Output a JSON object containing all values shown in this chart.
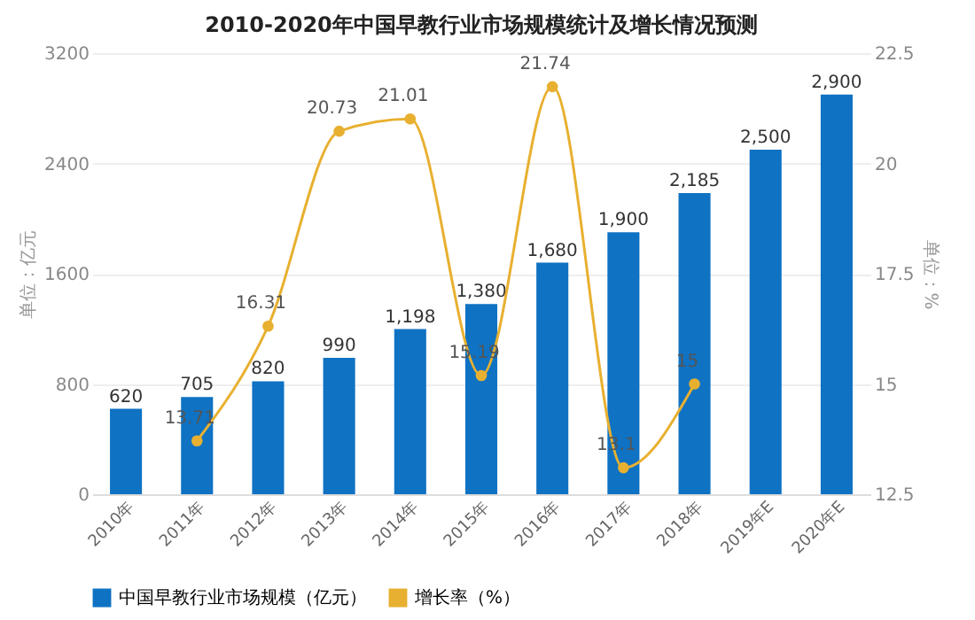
{
  "chart_data": {
    "type": "bar",
    "title": "2010-2020年中国早教行业市场规模统计及增长情况预测",
    "categories": [
      "2010年",
      "2011年",
      "2012年",
      "2013年",
      "2014年",
      "2015年",
      "2016年",
      "2017年",
      "2018年",
      "2019年E",
      "2020年E"
    ],
    "ylabel": "单位：亿元",
    "y2label": "单位：%",
    "series": [
      {
        "name": "中国早教行业市场规模（亿元）",
        "color": "#0f72c3",
        "values": [
          620,
          705,
          820,
          990,
          1198,
          1380,
          1680,
          1900,
          2185,
          2500,
          2900
        ],
        "value_labels": [
          "620",
          "705",
          "820",
          "990",
          "1,198",
          "1,380",
          "1,680",
          "1,900",
          "2,185",
          "2,500",
          "2,900"
        ]
      },
      {
        "name": "增长率（%）",
        "type": "line",
        "axis": "y2",
        "color": "#e8b030",
        "marker": "circle",
        "values": [
          null,
          13.71,
          16.31,
          20.73,
          21.01,
          15.19,
          21.74,
          13.1,
          15,
          null,
          null
        ],
        "value_labels": [
          null,
          "13.71",
          "16.31",
          "20.73",
          "21.01",
          "15.19",
          "21.74",
          "13.1",
          "15",
          null,
          null
        ]
      }
    ],
    "ylim": [
      0,
      3200
    ],
    "yticks": [
      0,
      800,
      1600,
      2400,
      3200
    ],
    "y2lim": [
      12.5,
      22.5
    ],
    "y2ticks": [
      12.5,
      15,
      17.5,
      20,
      22.5
    ],
    "grid": "y",
    "legend": "bottom"
  }
}
